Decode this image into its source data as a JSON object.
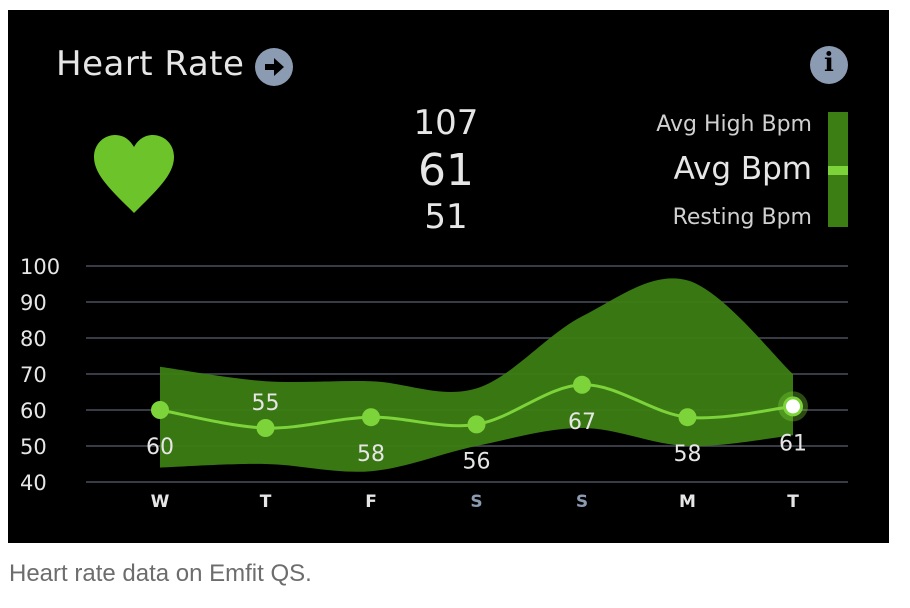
{
  "header": {
    "title": "Heart Rate",
    "nav_icon": "arrow-right-circle-icon",
    "info_icon": "info-icon",
    "info_glyph": "i"
  },
  "summary": {
    "avg_high": "107",
    "avg": "61",
    "resting": "51",
    "heart_icon": "heart-icon"
  },
  "legend": {
    "avg_high_label": "Avg High Bpm",
    "avg_label": "Avg Bpm",
    "resting_label": "Resting Bpm"
  },
  "colors": {
    "background": "#000000",
    "band": "#3c7d14",
    "line": "#7cd43a",
    "heart": "#6cc42a",
    "grid": "#4a4f5a",
    "weekend_tick": "#8b9bb2"
  },
  "chart_data": {
    "type": "area",
    "categories": [
      "W",
      "T",
      "F",
      "S",
      "S",
      "M",
      "T"
    ],
    "weekend_categories": [
      3,
      4
    ],
    "ylim": [
      40,
      100
    ],
    "yticks": [
      100,
      90,
      80,
      70,
      60,
      50,
      40
    ],
    "grid": true,
    "series": [
      {
        "values": [
          60,
          55,
          58,
          56,
          67,
          58,
          61
        ]
      },
      {
        "values": [
          72,
          68,
          68,
          66,
          86,
          96,
          70
        ]
      },
      {
        "values": [
          44,
          45,
          43,
          50,
          55,
          50,
          53
        ]
      }
    ],
    "data_labels": [
      "60",
      "55",
      "58",
      "56",
      "67",
      "58",
      "61"
    ]
  },
  "caption": "Heart rate data on Emfit QS."
}
